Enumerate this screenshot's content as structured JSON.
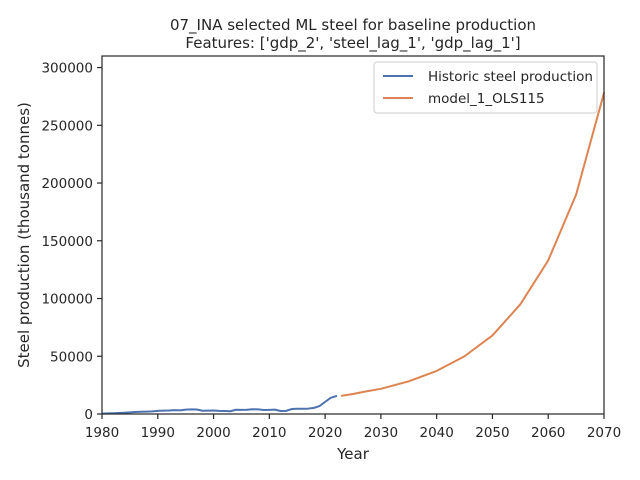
{
  "chart_data": {
    "type": "line",
    "title_line1": "07_INA selected ML steel for baseline production",
    "title_line2": "Features: ['gdp_2', 'steel_lag_1', 'gdp_lag_1']",
    "xlabel": "Year",
    "ylabel": "Steel production (thousand tonnes)",
    "xlim": [
      1980,
      2070
    ],
    "ylim": [
      0,
      310000
    ],
    "xticks": [
      1980,
      1990,
      2000,
      2010,
      2020,
      2030,
      2040,
      2050,
      2060,
      2070
    ],
    "yticks": [
      0,
      50000,
      100000,
      150000,
      200000,
      250000,
      300000
    ],
    "grid": false,
    "legend_position": "top-right",
    "series": [
      {
        "name": "Historic steel production",
        "color": "#4c72b0",
        "x": [
          1980,
          1981,
          1982,
          1983,
          1984,
          1985,
          1986,
          1987,
          1988,
          1989,
          1990,
          1991,
          1992,
          1993,
          1994,
          1995,
          1996,
          1997,
          1998,
          1999,
          2000,
          2001,
          2002,
          2003,
          2004,
          2005,
          2006,
          2007,
          2008,
          2009,
          2010,
          2011,
          2012,
          2013,
          2014,
          2015,
          2016,
          2017,
          2018,
          2019,
          2020,
          2021,
          2022
        ],
        "y": [
          300,
          500,
          700,
          900,
          1100,
          1400,
          1700,
          1900,
          2100,
          2300,
          2700,
          2900,
          3000,
          3400,
          3100,
          3800,
          4000,
          3900,
          2800,
          2900,
          3000,
          2700,
          2600,
          2400,
          3700,
          3600,
          3700,
          4100,
          4000,
          3500,
          3600,
          3800,
          2600,
          2700,
          4300,
          4600,
          4500,
          4700,
          5300,
          6900,
          10500,
          14000,
          15500
        ]
      },
      {
        "name": "model_1_OLS115",
        "color": "#dd8452",
        "x": [
          2023,
          2025,
          2027,
          2030,
          2035,
          2040,
          2045,
          2050,
          2055,
          2060,
          2065,
          2070
        ],
        "y": [
          15800,
          17300,
          19300,
          21800,
          28300,
          37300,
          50000,
          68000,
          95000,
          133000,
          190000,
          278000
        ]
      }
    ]
  }
}
